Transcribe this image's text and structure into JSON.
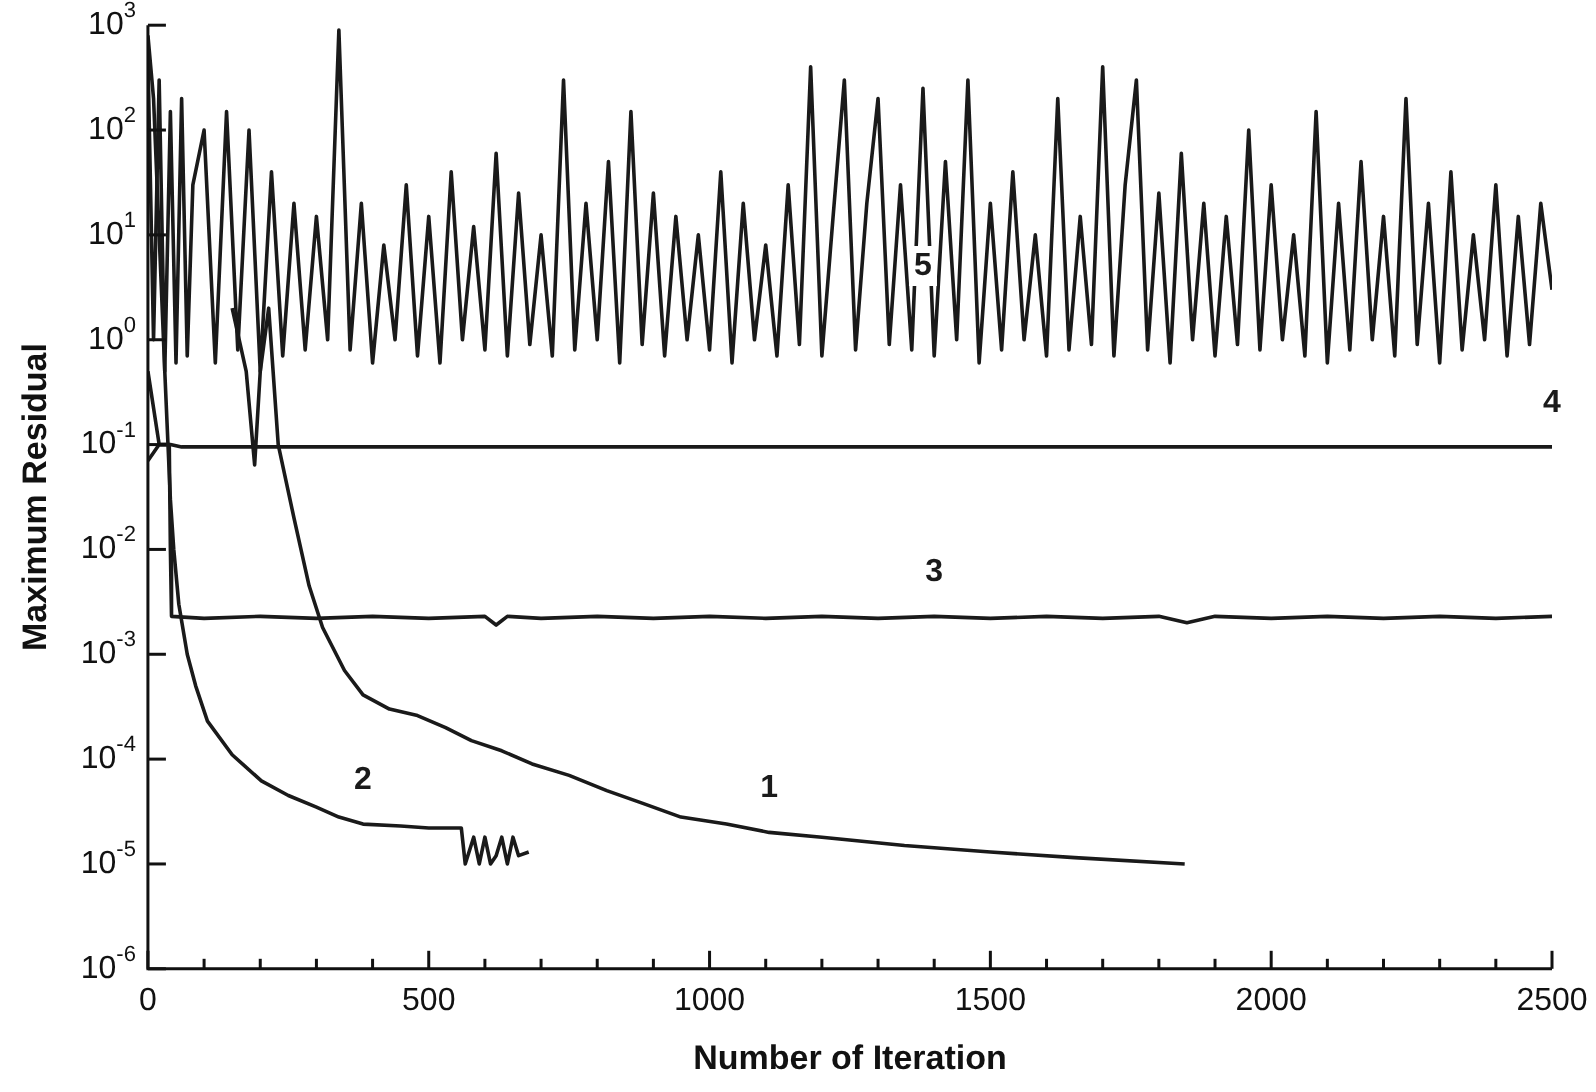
{
  "chart_data": {
    "type": "line",
    "xlabel": "Number of Iteration",
    "ylabel": "Maximum Residual",
    "log": "y",
    "grid": false,
    "legend": false,
    "marker": "none",
    "line_style": "solid",
    "xlim": [
      0,
      2500
    ],
    "ylim": [
      1e-06,
      1000
    ],
    "xticks": [
      0,
      {
        "value": 100,
        "label": null
      },
      {
        "value": 200,
        "label": null
      },
      {
        "value": 300,
        "label": null
      },
      {
        "value": 400,
        "label": null
      },
      500,
      {
        "value": 600,
        "label": null
      },
      {
        "value": 700,
        "label": null
      },
      {
        "value": 800,
        "label": null
      },
      {
        "value": 900,
        "label": null
      },
      1000,
      {
        "value": 1100,
        "label": null
      },
      {
        "value": 1200,
        "label": null
      },
      {
        "value": 1300,
        "label": null
      },
      {
        "value": 1400,
        "label": null
      },
      1500,
      {
        "value": 1600,
        "label": null
      },
      {
        "value": 1700,
        "label": null
      },
      {
        "value": 1800,
        "label": null
      },
      {
        "value": 1900,
        "label": null
      },
      2000,
      {
        "value": 2100,
        "label": null
      },
      {
        "value": 2200,
        "label": null
      },
      {
        "value": 2300,
        "label": null
      },
      {
        "value": 2400,
        "label": null
      },
      2500
    ],
    "yticks": [
      {
        "value": 1e-06,
        "label": "10$^{-6}$"
      },
      {
        "value": 1e-05,
        "label": "10$^{-5}$"
      },
      {
        "value": 0.0001,
        "label": "10$^{-4}$"
      },
      {
        "value": 0.001,
        "label": "10$^{-3}$"
      },
      {
        "value": 0.01,
        "label": "10$^{-2}$"
      },
      {
        "value": 0.1,
        "label": "10$^{-1}$"
      },
      {
        "value": 1,
        "label": "10$^{0}$"
      },
      {
        "value": 10,
        "label": "10$^{1}$"
      },
      {
        "value": 100,
        "label": "10$^{2}$"
      },
      {
        "value": 1000,
        "label": "10$^{3}$"
      }
    ],
    "series": [
      {
        "name": "1",
        "color": "#1a1a1a",
        "x": [
          150,
          175,
          190,
          200,
          215,
          232,
          260,
          287,
          311,
          350,
          383,
          430,
          480,
          530,
          576,
          630,
          684,
          750,
          817,
          880,
          949,
          1030,
          1106,
          1200,
          1347,
          1500,
          1650,
          1846
        ],
        "values": [
          2,
          0.5,
          0.064,
          0.5,
          2,
          0.1,
          0.02,
          0.0045,
          0.0018,
          0.0007,
          0.00041,
          0.0003,
          0.00026,
          0.0002,
          0.00015,
          0.00012,
          9e-05,
          7e-05,
          5e-05,
          3.8e-05,
          2.8e-05,
          2.4e-05,
          2e-05,
          1.8e-05,
          1.5e-05,
          1.3e-05,
          1.15e-05,
          1e-05
        ]
      },
      {
        "name": "2",
        "color": "#1a1a1a",
        "x": [
          0,
          10,
          20,
          30,
          40,
          46,
          55,
          70,
          85,
          106,
          150,
          202,
          250,
          299,
          340,
          383,
          450,
          500,
          558,
          565,
          580,
          590,
          600,
          610,
          620,
          630,
          640,
          650,
          660,
          678
        ],
        "values": [
          800,
          200,
          10,
          0.5,
          0.03,
          0.01,
          0.003,
          0.001,
          0.0005,
          0.00023,
          0.00011,
          6.2e-05,
          4.5e-05,
          3.5e-05,
          2.8e-05,
          2.4e-05,
          2.3e-05,
          2.2e-05,
          2.2e-05,
          1e-05,
          1.8e-05,
          1e-05,
          1.8e-05,
          1e-05,
          1.2e-05,
          1.8e-05,
          1e-05,
          1.8e-05,
          1.2e-05,
          1.3e-05
        ]
      },
      {
        "name": "3",
        "color": "#1a1a1a",
        "x": [
          0,
          20,
          38,
          40,
          42,
          100,
          200,
          300,
          400,
          500,
          600,
          620,
          640,
          700,
          800,
          900,
          1000,
          1100,
          1200,
          1300,
          1400,
          1500,
          1600,
          1700,
          1800,
          1850,
          1900,
          2000,
          2100,
          2200,
          2300,
          2400,
          2500
        ],
        "values": [
          0.5,
          0.1,
          0.1,
          0.01,
          0.0023,
          0.0022,
          0.0023,
          0.0022,
          0.0023,
          0.0022,
          0.0023,
          0.0019,
          0.0023,
          0.0022,
          0.0023,
          0.0022,
          0.0023,
          0.0022,
          0.0023,
          0.0022,
          0.0023,
          0.0022,
          0.0023,
          0.0022,
          0.0023,
          0.002,
          0.0023,
          0.0022,
          0.0023,
          0.0022,
          0.0023,
          0.0022,
          0.0023
        ]
      },
      {
        "name": "4",
        "color": "#1a1a1a",
        "x": [
          0,
          20,
          40,
          60,
          2500
        ],
        "values": [
          0.07,
          0.1,
          0.1,
          0.095,
          0.095
        ]
      },
      {
        "name": "5",
        "color": "#1a1a1a",
        "x": [
          0,
          10,
          20,
          30,
          40,
          50,
          60,
          70,
          80,
          100,
          120,
          140,
          160,
          180,
          200,
          220,
          240,
          260,
          280,
          300,
          320,
          340,
          360,
          380,
          400,
          420,
          440,
          460,
          480,
          500,
          520,
          540,
          560,
          580,
          600,
          620,
          640,
          660,
          680,
          700,
          720,
          740,
          760,
          780,
          800,
          820,
          840,
          860,
          880,
          900,
          920,
          940,
          960,
          980,
          1000,
          1020,
          1040,
          1060,
          1080,
          1100,
          1120,
          1140,
          1160,
          1180,
          1200,
          1220,
          1240,
          1260,
          1280,
          1300,
          1320,
          1340,
          1360,
          1380,
          1400,
          1420,
          1440,
          1460,
          1480,
          1500,
          1520,
          1540,
          1560,
          1580,
          1600,
          1620,
          1640,
          1660,
          1680,
          1700,
          1720,
          1740,
          1760,
          1780,
          1800,
          1820,
          1840,
          1860,
          1880,
          1900,
          1920,
          1940,
          1960,
          1980,
          2000,
          2020,
          2040,
          2060,
          2080,
          2100,
          2120,
          2140,
          2160,
          2180,
          2200,
          2220,
          2240,
          2260,
          2280,
          2300,
          2320,
          2340,
          2360,
          2380,
          2400,
          2420,
          2440,
          2460,
          2480,
          2500
        ],
        "values": [
          500,
          1,
          300,
          0.5,
          150,
          0.6,
          200,
          0.7,
          30,
          100,
          0.6,
          150,
          0.8,
          100,
          0.5,
          40,
          0.7,
          20,
          0.8,
          15,
          1,
          900,
          0.8,
          20,
          0.6,
          8,
          1,
          30,
          0.7,
          15,
          0.6,
          40,
          1,
          12,
          0.8,
          60,
          0.7,
          25,
          0.9,
          10,
          0.7,
          300,
          0.8,
          20,
          1,
          50,
          0.6,
          150,
          0.9,
          25,
          0.7,
          15,
          1,
          10,
          0.8,
          40,
          0.6,
          20,
          1,
          8,
          0.7,
          30,
          0.9,
          400,
          0.7,
          15,
          300,
          0.8,
          20,
          200,
          0.9,
          30,
          0.8,
          250,
          0.7,
          50,
          1,
          300,
          0.6,
          20,
          0.8,
          40,
          1,
          10,
          0.7,
          200,
          0.8,
          15,
          0.9,
          400,
          0.7,
          30,
          300,
          0.8,
          25,
          0.6,
          60,
          1,
          20,
          0.7,
          15,
          0.9,
          100,
          0.8,
          30,
          1,
          10,
          0.7,
          150,
          0.6,
          20,
          0.8,
          50,
          1,
          15,
          0.7,
          200,
          0.9,
          20,
          0.6,
          40,
          0.8,
          10,
          1,
          30,
          0.7,
          15,
          0.9,
          20,
          3
        ]
      }
    ]
  }
}
